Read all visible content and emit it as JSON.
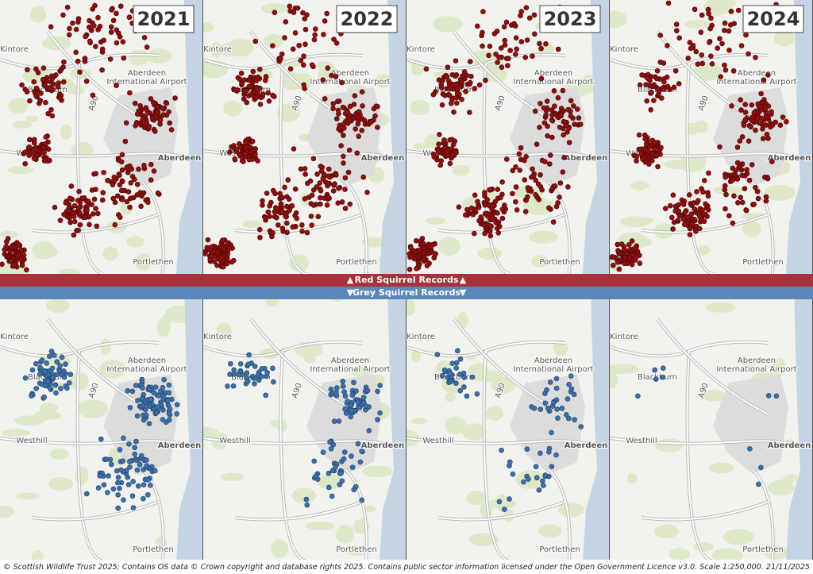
{
  "years": [
    "2021",
    "2022",
    "2023",
    "2024"
  ],
  "bands": {
    "red": "Red Squirrel Records",
    "grey": "Grey Squirrel Records"
  },
  "place_labels": {
    "kintore": "Kintore",
    "airport_line1": "Aberdeen",
    "airport_line2": "International Airport",
    "blackburn": "Blackburn",
    "road": "A90",
    "westhill": "Westhill",
    "aberdeen": "Aberdeen",
    "portlethen": "Portlethen"
  },
  "footer": "© Scottish Wildlife Trust 2025; Contains OS data © Crown copyright and database rights 2025. Contains public sector information licensed under the Open Government Licence v3.0. Scale 1:250,000. 21/11/2025"
}
